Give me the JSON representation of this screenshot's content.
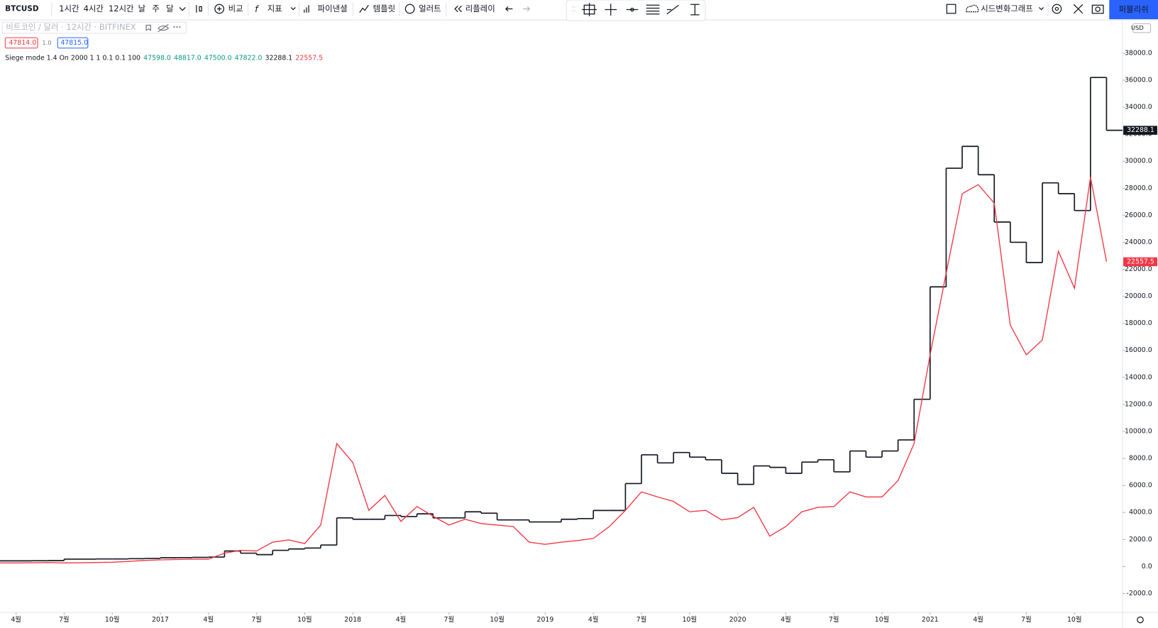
{
  "toolbar": {
    "symbol": "BTCUSD",
    "intervals": [
      "1시간",
      "4시간",
      "12시간",
      "날",
      "주",
      "달"
    ],
    "buttons": [
      "비교",
      "지표",
      "파이낸셜",
      "템플릿",
      "얼러트",
      "리플레이"
    ],
    "layout_name": "시드변화그래프",
    "publish": "퍼블리쉬"
  },
  "legend": {
    "symbol_line": "비트코인 / 달러 · 12시간 · BITFINEX",
    "bid": "47814.0",
    "spread": "1.0",
    "ask": "47815.0"
  },
  "indicator": {
    "name": "Siege mode 1.4 On 2000 1 1 0.1 0.1 100",
    "ohlc": [
      "47598.0",
      "48817.0",
      "47500.0",
      "47822.0"
    ]
  },
  "currency": "USD",
  "chart_data": {
    "type": "line",
    "x": [
      "2016-03",
      "2016-04",
      "2016-05",
      "2016-06",
      "2016-07",
      "2016-08",
      "2016-09",
      "2016-10",
      "2016-11",
      "2016-12",
      "2017-01",
      "2017-02",
      "2017-03",
      "2017-04",
      "2017-05",
      "2017-06",
      "2017-07",
      "2017-08",
      "2017-09",
      "2017-10",
      "2017-11",
      "2017-12",
      "2018-01",
      "2018-02",
      "2018-03",
      "2018-04",
      "2018-05",
      "2018-06",
      "2018-07",
      "2018-08",
      "2018-09",
      "2018-10",
      "2018-11",
      "2018-12",
      "2019-01",
      "2019-02",
      "2019-03",
      "2019-04",
      "2019-05",
      "2019-06",
      "2019-07",
      "2019-08",
      "2019-09",
      "2019-10",
      "2019-11",
      "2019-12",
      "2020-01",
      "2020-02",
      "2020-03",
      "2020-04",
      "2020-05",
      "2020-06",
      "2020-07",
      "2020-08",
      "2020-09",
      "2020-10",
      "2020-11",
      "2020-12",
      "2021-01",
      "2021-02",
      "2021-03",
      "2021-04",
      "2021-05",
      "2021-06",
      "2021-07",
      "2021-08",
      "2021-09",
      "2021-10",
      "2021-11",
      "2021-12"
    ],
    "series": [
      {
        "color": "#131722",
        "step": true,
        "values": [
          420,
          420,
          430,
          440,
          550,
          550,
          560,
          560,
          580,
          600,
          650,
          660,
          680,
          700,
          1150,
          990,
          880,
          1200,
          1300,
          1370,
          1590,
          3600,
          3500,
          3500,
          3780,
          3700,
          3900,
          3600,
          3600,
          4050,
          3950,
          3450,
          3450,
          3300,
          3300,
          3500,
          3550,
          4150,
          4150,
          6140,
          8270,
          7670,
          8440,
          8100,
          7900,
          6900,
          6080,
          7450,
          7340,
          6900,
          7730,
          7900,
          7010,
          8550,
          8100,
          8550,
          9370,
          12380,
          20700,
          29480,
          31100,
          29000,
          25500,
          24000,
          22500,
          28400,
          27600,
          26350,
          36200,
          32288.1
        ]
      },
      {
        "color": "#f23645",
        "step": false,
        "values": [
          270,
          270,
          280,
          300,
          270,
          280,
          300,
          320,
          380,
          450,
          490,
          520,
          540,
          550,
          990,
          1200,
          1150,
          1800,
          1970,
          1700,
          3070,
          9100,
          7700,
          4160,
          5260,
          3340,
          4440,
          3730,
          3070,
          3500,
          3180,
          3070,
          2960,
          1800,
          1640,
          1800,
          1920,
          2080,
          2960,
          4160,
          5530,
          5150,
          4820,
          4050,
          4160,
          3450,
          3620,
          4380,
          2250,
          2960,
          4050,
          4380,
          4440,
          5530,
          5150,
          5150,
          6360,
          9100,
          15670,
          21700,
          27600,
          28270,
          26900,
          17860,
          15670,
          16770,
          23340,
          20600,
          28820,
          22557.5
        ]
      }
    ],
    "xlim": [
      "2016-03",
      "2022-01"
    ],
    "xticks": [
      {
        "value": "2016-04",
        "label": "4월"
      },
      {
        "value": "2016-07",
        "label": "7월"
      },
      {
        "value": "2016-10",
        "label": "10월"
      },
      {
        "value": "2017-01",
        "label": "2017"
      },
      {
        "value": "2017-04",
        "label": "4월"
      },
      {
        "value": "2017-07",
        "label": "7월"
      },
      {
        "value": "2017-10",
        "label": "10월"
      },
      {
        "value": "2018-01",
        "label": "2018"
      },
      {
        "value": "2018-04",
        "label": "4월"
      },
      {
        "value": "2018-07",
        "label": "7월"
      },
      {
        "value": "2018-10",
        "label": "10월"
      },
      {
        "value": "2019-01",
        "label": "2019"
      },
      {
        "value": "2019-04",
        "label": "4월"
      },
      {
        "value": "2019-07",
        "label": "7월"
      },
      {
        "value": "2019-10",
        "label": "10월"
      },
      {
        "value": "2020-01",
        "label": "2020"
      },
      {
        "value": "2020-04",
        "label": "4월"
      },
      {
        "value": "2020-07",
        "label": "7월"
      },
      {
        "value": "2020-10",
        "label": "10월"
      },
      {
        "value": "2021-01",
        "label": "2021"
      },
      {
        "value": "2021-04",
        "label": "4월"
      },
      {
        "value": "2021-07",
        "label": "7월"
      },
      {
        "value": "2021-10",
        "label": "10월"
      }
    ],
    "ylim": [
      -3400,
      40400
    ],
    "yticks": [
      {
        "value": -2000,
        "label": "-2000.0"
      },
      {
        "value": 0,
        "label": "0.0"
      },
      {
        "value": 2000,
        "label": "2000.0"
      },
      {
        "value": 4000,
        "label": "4000.0"
      },
      {
        "value": 6000,
        "label": "6000.0"
      },
      {
        "value": 8000,
        "label": "8000.0"
      },
      {
        "value": 10000,
        "label": "10000.0"
      },
      {
        "value": 12000,
        "label": "12000.0"
      },
      {
        "value": 14000,
        "label": "14000.0"
      },
      {
        "value": 16000,
        "label": "16000.0"
      },
      {
        "value": 18000,
        "label": "18000.0"
      },
      {
        "value": 20000,
        "label": "20000.0"
      },
      {
        "value": 22000,
        "label": "22000.0"
      },
      {
        "value": 24000,
        "label": "24000.0"
      },
      {
        "value": 26000,
        "label": "26000.0"
      },
      {
        "value": 28000,
        "label": "28000.0"
      },
      {
        "value": 30000,
        "label": "30000.0"
      },
      {
        "value": 32000,
        "label": "32000.0"
      },
      {
        "value": 34000,
        "label": "34000.0"
      },
      {
        "value": 36000,
        "label": "36000.0"
      },
      {
        "value": 38000,
        "label": "38000.0"
      }
    ],
    "grid": false
  }
}
